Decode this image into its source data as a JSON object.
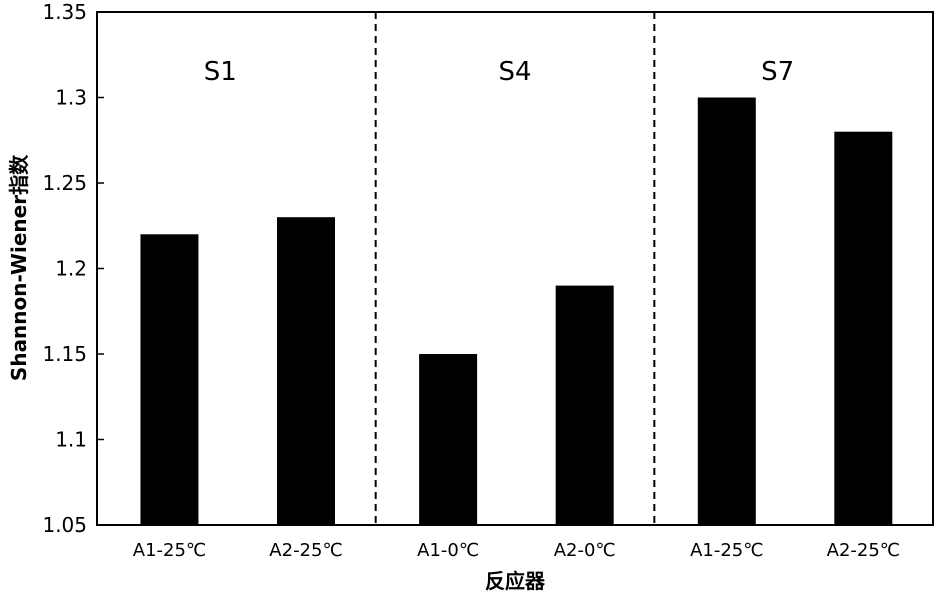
{
  "chart_data": {
    "type": "bar",
    "title": "",
    "xlabel": "反应器",
    "ylabel": "Shannon-Wiener指数",
    "ylim": [
      1.05,
      1.35
    ],
    "yticks": [
      "1.05",
      "1.1",
      "1.15",
      "1.2",
      "1.25",
      "1.3",
      "1.35"
    ],
    "grid": false,
    "groups": [
      {
        "name": "S1",
        "categories": [
          "A1-25℃",
          "A2-25℃"
        ],
        "values": [
          1.22,
          1.23
        ]
      },
      {
        "name": "S4",
        "categories": [
          "A1-0℃",
          "A2-0℃"
        ],
        "values": [
          1.15,
          1.19
        ]
      },
      {
        "name": "S7",
        "categories": [
          "A1-25℃",
          "A2-25℃"
        ],
        "values": [
          1.3,
          1.28
        ]
      }
    ],
    "bar_color": "#000000",
    "group_separator": "dashed"
  }
}
